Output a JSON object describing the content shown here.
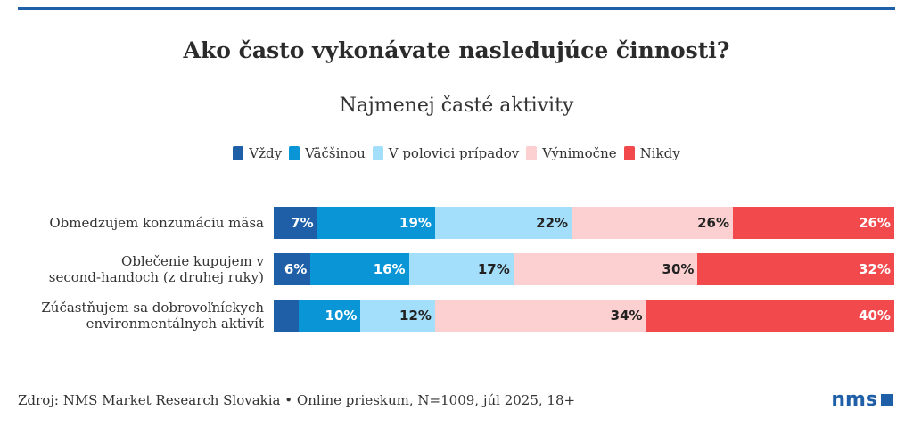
{
  "chart_data": {
    "type": "bar",
    "orientation": "horizontal-stacked-100",
    "title": "Ako často vykonávate nasledujúce činnosti?",
    "subtitle": "Najmenej časté aktivity",
    "legend_position": "top",
    "categories": [
      "Obmedzujem konzumáciu mäsa",
      "Oblečenie kupujem v second-handoch (z druhej ruky)",
      "Zúčastňujem sa dobrovoľníckych environmentálnych aktivít"
    ],
    "category_lines": [
      [
        "Obmedzujem konzumáciu mäsa"
      ],
      [
        "Oblečenie kupujem v",
        "second-handoch (z druhej ruky)"
      ],
      [
        "Zúčastňujem sa dobrovoľníckych",
        "environmentálnych aktivít"
      ]
    ],
    "series": [
      {
        "name": "Vždy",
        "color": "#1f5fa8",
        "text_color": "#ffffff",
        "values": [
          7,
          6,
          4
        ],
        "labels": [
          "7%",
          "6%",
          ""
        ]
      },
      {
        "name": "Väčšinou",
        "color": "#0a96d6",
        "text_color": "#ffffff",
        "values": [
          19,
          16,
          10
        ],
        "labels": [
          "19%",
          "16%",
          "10%"
        ]
      },
      {
        "name": "V polovici prípadov",
        "color": "#a3dffa",
        "text_color": "#222222",
        "values": [
          22,
          17,
          12
        ],
        "labels": [
          "22%",
          "17%",
          "12%"
        ]
      },
      {
        "name": "Výnimočne",
        "color": "#fcd0d0",
        "text_color": "#222222",
        "values": [
          26,
          30,
          34
        ],
        "labels": [
          "26%",
          "30%",
          "34%"
        ]
      },
      {
        "name": "Nikdy",
        "color": "#f2494c",
        "text_color": "#ffffff",
        "values": [
          26,
          32,
          40
        ],
        "labels": [
          "26%",
          "32%",
          "40%"
        ]
      }
    ]
  },
  "footer": {
    "source_prefix": "Zdroj: ",
    "source_link": "NMS Market Research Slovakia",
    "source_suffix": " • Online prieskum, N=1009, júl 2025, 18+"
  },
  "logo": {
    "text": "nms"
  },
  "colors": {
    "accent": "#1f5fa8"
  }
}
